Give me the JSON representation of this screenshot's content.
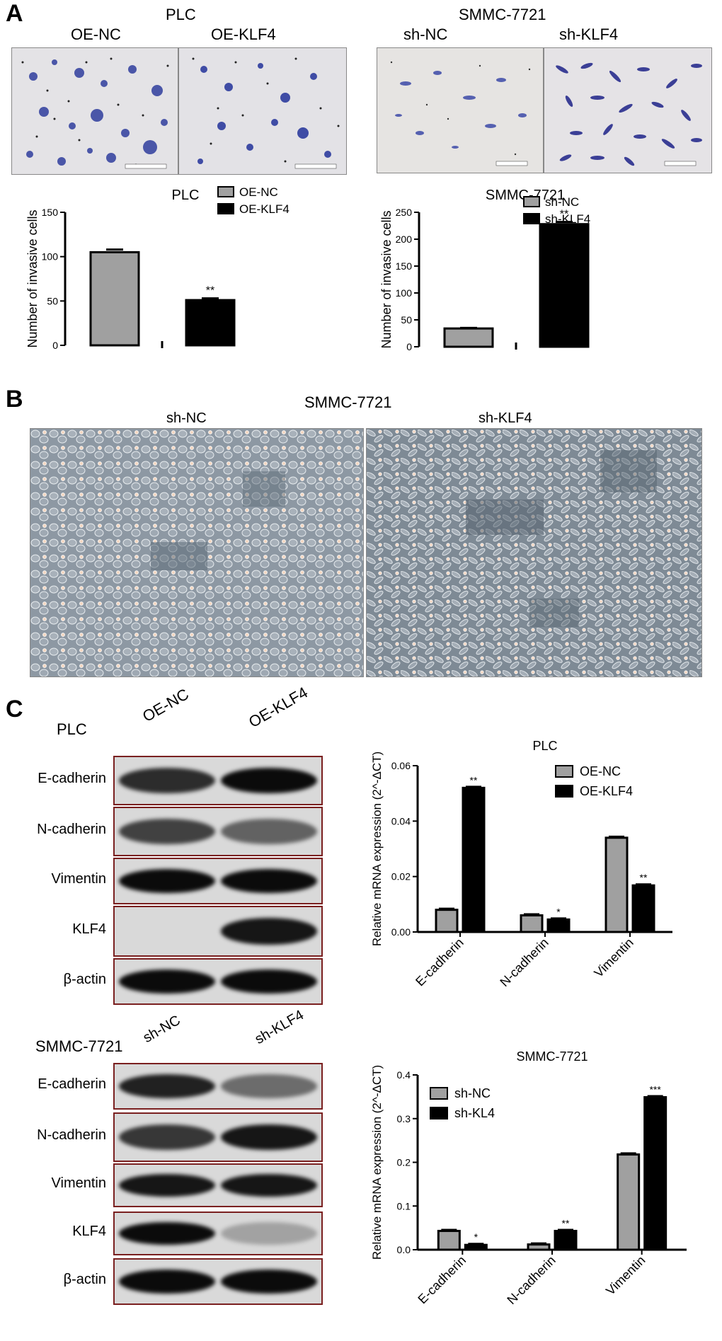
{
  "panels": {
    "A": {
      "letter": "A",
      "micro_left": {
        "title": "PLC",
        "left_label": "OE-NC",
        "right_label": "OE-KLF4"
      },
      "micro_right": {
        "title": "SMMC-7721",
        "left_label": "sh-NC",
        "right_label": "sh-KLF4"
      }
    },
    "B": {
      "letter": "B",
      "title": "SMMC-7721",
      "left_label": "sh-NC",
      "right_label": "sh-KLF4"
    },
    "C": {
      "letter": "C",
      "blot_top": {
        "cell_line": "PLC",
        "lanes": [
          "OE-NC",
          "OE-KLF4"
        ],
        "rows": [
          "E-cadherin",
          "N-cadherin",
          "Vimentin",
          "KLF4",
          "β-actin"
        ]
      },
      "blot_bottom": {
        "cell_line": "SMMC-7721",
        "lanes": [
          "sh-NC",
          "sh-KLF4"
        ],
        "rows": [
          "E-cadherin",
          "N-cadherin",
          "Vimentin",
          "KLF4",
          "β-actin"
        ]
      }
    }
  },
  "colors": {
    "bar_gray": "#a0a0a0",
    "bar_black": "#000000",
    "blot_border": "#7a2020",
    "micro_purple": "#5560b0"
  },
  "chart_data": [
    {
      "type": "bar",
      "title": "PLC",
      "ylabel": "Number of invasive cells",
      "ylim": [
        0,
        150
      ],
      "yticks": [
        0,
        50,
        100,
        150
      ],
      "categories": [
        "OE-NC",
        "OE-KLF4"
      ],
      "values": [
        105,
        51
      ],
      "errors": [
        3,
        2
      ],
      "annotations": [
        "",
        "**"
      ],
      "legend": [
        "OE-NC",
        "OE-KLF4"
      ],
      "legend_position": "top-right"
    },
    {
      "type": "bar",
      "title": "SMMC-7721",
      "ylabel": "Number of invasive cells",
      "ylim": [
        0,
        250
      ],
      "yticks": [
        0,
        50,
        100,
        150,
        200,
        250
      ],
      "categories": [
        "sh-NC",
        "sh-KLF4"
      ],
      "values": [
        34,
        228
      ],
      "errors": [
        1,
        4
      ],
      "annotations": [
        "",
        "**"
      ],
      "legend": [
        "sh-NC",
        "sh-KLF4"
      ],
      "legend_position": "top-right"
    },
    {
      "type": "bar",
      "title": "PLC",
      "ylabel": "Relative mRNA expression (2^-ΔCT)",
      "ylim": [
        0,
        0.06
      ],
      "yticks": [
        "0.00",
        "0.02",
        "0.04",
        "0.06"
      ],
      "categories": [
        "E-cadherin",
        "N-cadherin",
        "Vimentin"
      ],
      "series": [
        {
          "name": "OE-NC",
          "values": [
            0.008,
            0.006,
            0.034
          ],
          "annotations": [
            "",
            "",
            ""
          ]
        },
        {
          "name": "OE-KLF4",
          "values": [
            0.052,
            0.0045,
            0.0168
          ],
          "annotations": [
            "**",
            "*",
            "**"
          ]
        }
      ],
      "legend_position": "top-right"
    },
    {
      "type": "bar",
      "title": "SMMC-7721",
      "ylabel": "Relative mRNA expression (2^-ΔCT)",
      "ylim": [
        0,
        0.4
      ],
      "yticks": [
        "0.0",
        "0.1",
        "0.2",
        "0.3",
        "0.4"
      ],
      "categories": [
        "E-cadherin",
        "N-cadherin",
        "Vimentin"
      ],
      "series": [
        {
          "name": "sh-NC",
          "values": [
            0.043,
            0.012,
            0.218
          ],
          "annotations": [
            "",
            "",
            ""
          ]
        },
        {
          "name": "sh-KL4",
          "values": [
            0.011,
            0.043,
            0.349
          ],
          "annotations": [
            "*",
            "**",
            "***"
          ]
        }
      ],
      "legend_position": "top-left"
    }
  ]
}
